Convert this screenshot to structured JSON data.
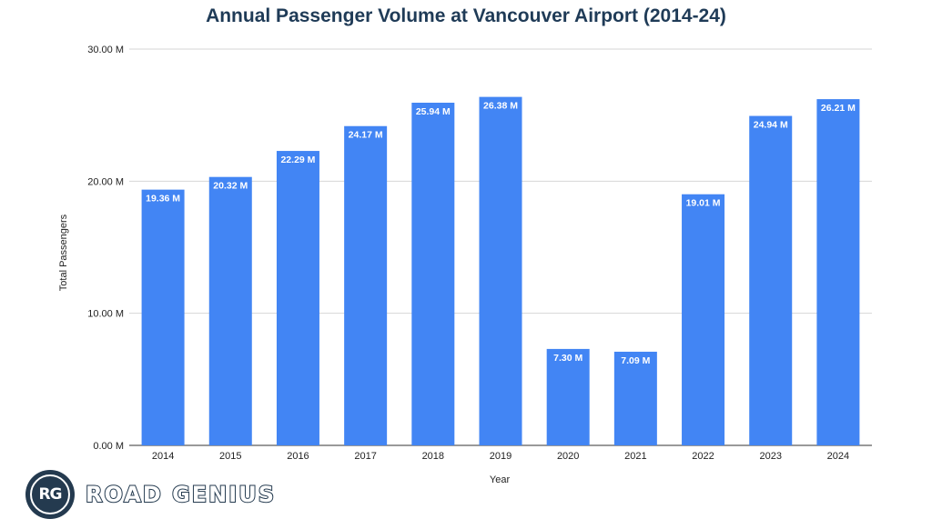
{
  "brand": {
    "title_color": "#1f3b57",
    "bar_color": "#4285f4",
    "logo_color": "#243a4f"
  },
  "logo": {
    "monogram": "RG",
    "wordmark": "ROAD GENIUS"
  },
  "chart_data": {
    "type": "bar",
    "title": "Annual Passenger Volume at Vancouver Airport (2014-24)",
    "xlabel": "Year",
    "ylabel": "Total Passengers",
    "ylim": [
      0,
      30
    ],
    "yticks": [
      0,
      10,
      20,
      30
    ],
    "ytick_labels": [
      "0.00 M",
      "10.00 M",
      "20.00 M",
      "30.00 M"
    ],
    "grid": true,
    "legend": "none",
    "categories": [
      "2014",
      "2015",
      "2016",
      "2017",
      "2018",
      "2019",
      "2020",
      "2021",
      "2022",
      "2023",
      "2024"
    ],
    "values": [
      19.36,
      20.32,
      22.29,
      24.17,
      25.94,
      26.38,
      7.3,
      7.09,
      19.01,
      24.94,
      26.21
    ],
    "data_labels": [
      "19.36 M",
      "20.32 M",
      "22.29 M",
      "24.17 M",
      "25.94 M",
      "26.38 M",
      "7.30 M",
      "7.09 M",
      "19.01 M",
      "24.94 M",
      "26.21 M"
    ]
  }
}
